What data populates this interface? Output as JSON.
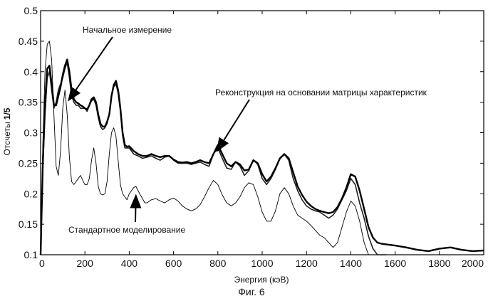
{
  "chart_data": {
    "type": "line",
    "xlabel": "Энергия (кэВ)",
    "ylabel": "Отсчеты",
    "ylabel_sup": "1/5",
    "xlim": [
      0,
      2000
    ],
    "ylim": [
      0.1,
      0.5
    ],
    "xticks": [
      0,
      200,
      400,
      600,
      800,
      1000,
      1200,
      1400,
      1600,
      1800,
      2000
    ],
    "yticks": [
      0.1,
      0.15,
      0.2,
      0.25,
      0.3,
      0.35,
      0.4,
      0.45,
      0.5
    ],
    "caption": "Фиг. 6",
    "annotations": [
      {
        "text": "Начальное измерение",
        "target_x": 130,
        "target_y": 0.355
      },
      {
        "text": "Реконструкция на основании матрицы характеристик",
        "target_x": 800,
        "target_y": 0.272
      },
      {
        "text": "Стандартное моделирование",
        "target_x": 430,
        "target_y": 0.195
      }
    ],
    "series": [
      {
        "style": "measured",
        "x": [
          0,
          10,
          20,
          30,
          40,
          50,
          60,
          70,
          80,
          90,
          100,
          110,
          120,
          130,
          140,
          150,
          160,
          170,
          180,
          190,
          200,
          210,
          220,
          230,
          240,
          250,
          260,
          270,
          280,
          290,
          300,
          310,
          320,
          330,
          340,
          350,
          360,
          370,
          380,
          390,
          400,
          420,
          440,
          460,
          480,
          500,
          520,
          540,
          560,
          580,
          600,
          620,
          640,
          660,
          680,
          700,
          720,
          740,
          760,
          780,
          800,
          820,
          840,
          860,
          880,
          900,
          920,
          940,
          960,
          980,
          1000,
          1020,
          1040,
          1060,
          1080,
          1100,
          1120,
          1140,
          1160,
          1180,
          1200,
          1220,
          1240,
          1260,
          1280,
          1300,
          1320,
          1340,
          1360,
          1380,
          1400,
          1420,
          1440,
          1460,
          1480,
          1500,
          1520,
          1540,
          1560
        ],
        "y": [
          0.1,
          0.24,
          0.33,
          0.39,
          0.4,
          0.37,
          0.34,
          0.35,
          0.37,
          0.38,
          0.39,
          0.405,
          0.415,
          0.39,
          0.36,
          0.35,
          0.345,
          0.345,
          0.34,
          0.34,
          0.34,
          0.335,
          0.345,
          0.352,
          0.355,
          0.345,
          0.325,
          0.31,
          0.305,
          0.308,
          0.315,
          0.33,
          0.36,
          0.375,
          0.38,
          0.365,
          0.335,
          0.295,
          0.275,
          0.275,
          0.275,
          0.265,
          0.262,
          0.258,
          0.26,
          0.262,
          0.258,
          0.255,
          0.26,
          0.262,
          0.255,
          0.25,
          0.25,
          0.25,
          0.248,
          0.25,
          0.252,
          0.248,
          0.245,
          0.265,
          0.275,
          0.258,
          0.242,
          0.24,
          0.252,
          0.245,
          0.23,
          0.238,
          0.255,
          0.248,
          0.225,
          0.215,
          0.225,
          0.24,
          0.258,
          0.265,
          0.255,
          0.225,
          0.205,
          0.19,
          0.18,
          0.175,
          0.172,
          0.17,
          0.165,
          0.16,
          0.165,
          0.175,
          0.19,
          0.205,
          0.225,
          0.215,
          0.185,
          0.16,
          0.13,
          0.11,
          0.1,
          0.1,
          0.1
        ]
      },
      {
        "style": "reconstruction",
        "x": [
          0,
          10,
          20,
          30,
          40,
          50,
          60,
          70,
          80,
          90,
          100,
          110,
          120,
          130,
          140,
          150,
          160,
          170,
          180,
          190,
          200,
          210,
          220,
          230,
          240,
          250,
          260,
          270,
          280,
          290,
          300,
          310,
          320,
          330,
          340,
          350,
          360,
          370,
          380,
          390,
          400,
          420,
          440,
          460,
          480,
          500,
          520,
          540,
          560,
          580,
          600,
          620,
          640,
          660,
          680,
          700,
          720,
          740,
          760,
          780,
          800,
          820,
          840,
          860,
          880,
          900,
          920,
          940,
          960,
          980,
          1000,
          1020,
          1040,
          1060,
          1080,
          1100,
          1120,
          1140,
          1160,
          1180,
          1200,
          1220,
          1240,
          1260,
          1280,
          1300,
          1320,
          1340,
          1360,
          1380,
          1400,
          1420,
          1440,
          1460,
          1480,
          1500,
          1520,
          1540,
          1560,
          1600,
          1650,
          1700,
          1750,
          1800,
          1850,
          1900,
          1950,
          2000
        ],
        "y": [
          0.1,
          0.25,
          0.35,
          0.405,
          0.41,
          0.38,
          0.345,
          0.345,
          0.36,
          0.375,
          0.395,
          0.41,
          0.42,
          0.4,
          0.37,
          0.355,
          0.35,
          0.348,
          0.345,
          0.343,
          0.34,
          0.338,
          0.345,
          0.355,
          0.358,
          0.35,
          0.33,
          0.315,
          0.31,
          0.31,
          0.318,
          0.33,
          0.36,
          0.378,
          0.385,
          0.37,
          0.34,
          0.3,
          0.28,
          0.277,
          0.278,
          0.27,
          0.265,
          0.262,
          0.262,
          0.265,
          0.262,
          0.26,
          0.262,
          0.262,
          0.256,
          0.252,
          0.251,
          0.252,
          0.25,
          0.252,
          0.255,
          0.252,
          0.25,
          0.265,
          0.28,
          0.265,
          0.25,
          0.245,
          0.252,
          0.248,
          0.238,
          0.24,
          0.255,
          0.25,
          0.232,
          0.22,
          0.228,
          0.242,
          0.258,
          0.265,
          0.258,
          0.235,
          0.212,
          0.198,
          0.187,
          0.18,
          0.175,
          0.172,
          0.17,
          0.168,
          0.17,
          0.178,
          0.192,
          0.21,
          0.232,
          0.228,
          0.205,
          0.175,
          0.145,
          0.128,
          0.12,
          0.118,
          0.117,
          0.115,
          0.112,
          0.108,
          0.106,
          0.11,
          0.112,
          0.108,
          0.106,
          0.107
        ]
      },
      {
        "style": "standard",
        "x": [
          0,
          10,
          20,
          30,
          40,
          50,
          60,
          70,
          80,
          90,
          100,
          110,
          120,
          130,
          140,
          150,
          160,
          170,
          180,
          190,
          200,
          210,
          220,
          230,
          240,
          250,
          260,
          270,
          280,
          290,
          300,
          310,
          320,
          330,
          340,
          350,
          360,
          370,
          380,
          390,
          400,
          410,
          420,
          430,
          440,
          450,
          460,
          470,
          480,
          500,
          520,
          540,
          560,
          580,
          600,
          620,
          640,
          660,
          680,
          700,
          720,
          740,
          760,
          780,
          800,
          820,
          840,
          860,
          880,
          900,
          920,
          940,
          960,
          980,
          1000,
          1020,
          1040,
          1060,
          1080,
          1100,
          1120,
          1140,
          1160,
          1180,
          1200,
          1220,
          1240,
          1260,
          1280,
          1300,
          1320,
          1340,
          1360,
          1380,
          1400,
          1420,
          1440,
          1460,
          1480
        ],
        "y": [
          0.1,
          0.28,
          0.4,
          0.445,
          0.45,
          0.42,
          0.33,
          0.245,
          0.23,
          0.27,
          0.34,
          0.37,
          0.33,
          0.26,
          0.22,
          0.215,
          0.22,
          0.225,
          0.23,
          0.222,
          0.215,
          0.215,
          0.225,
          0.255,
          0.275,
          0.25,
          0.212,
          0.2,
          0.198,
          0.2,
          0.22,
          0.265,
          0.3,
          0.308,
          0.295,
          0.255,
          0.215,
          0.2,
          0.195,
          0.19,
          0.2,
          0.205,
          0.21,
          0.212,
          0.205,
          0.198,
          0.192,
          0.185,
          0.185,
          0.19,
          0.192,
          0.188,
          0.185,
          0.19,
          0.193,
          0.188,
          0.18,
          0.175,
          0.172,
          0.175,
          0.182,
          0.195,
          0.21,
          0.222,
          0.215,
          0.198,
          0.185,
          0.18,
          0.185,
          0.195,
          0.21,
          0.218,
          0.215,
          0.195,
          0.17,
          0.155,
          0.155,
          0.172,
          0.2,
          0.21,
          0.2,
          0.18,
          0.165,
          0.16,
          0.155,
          0.148,
          0.14,
          0.132,
          0.128,
          0.12,
          0.112,
          0.12,
          0.145,
          0.17,
          0.188,
          0.18,
          0.155,
          0.12,
          0.1
        ]
      }
    ]
  }
}
